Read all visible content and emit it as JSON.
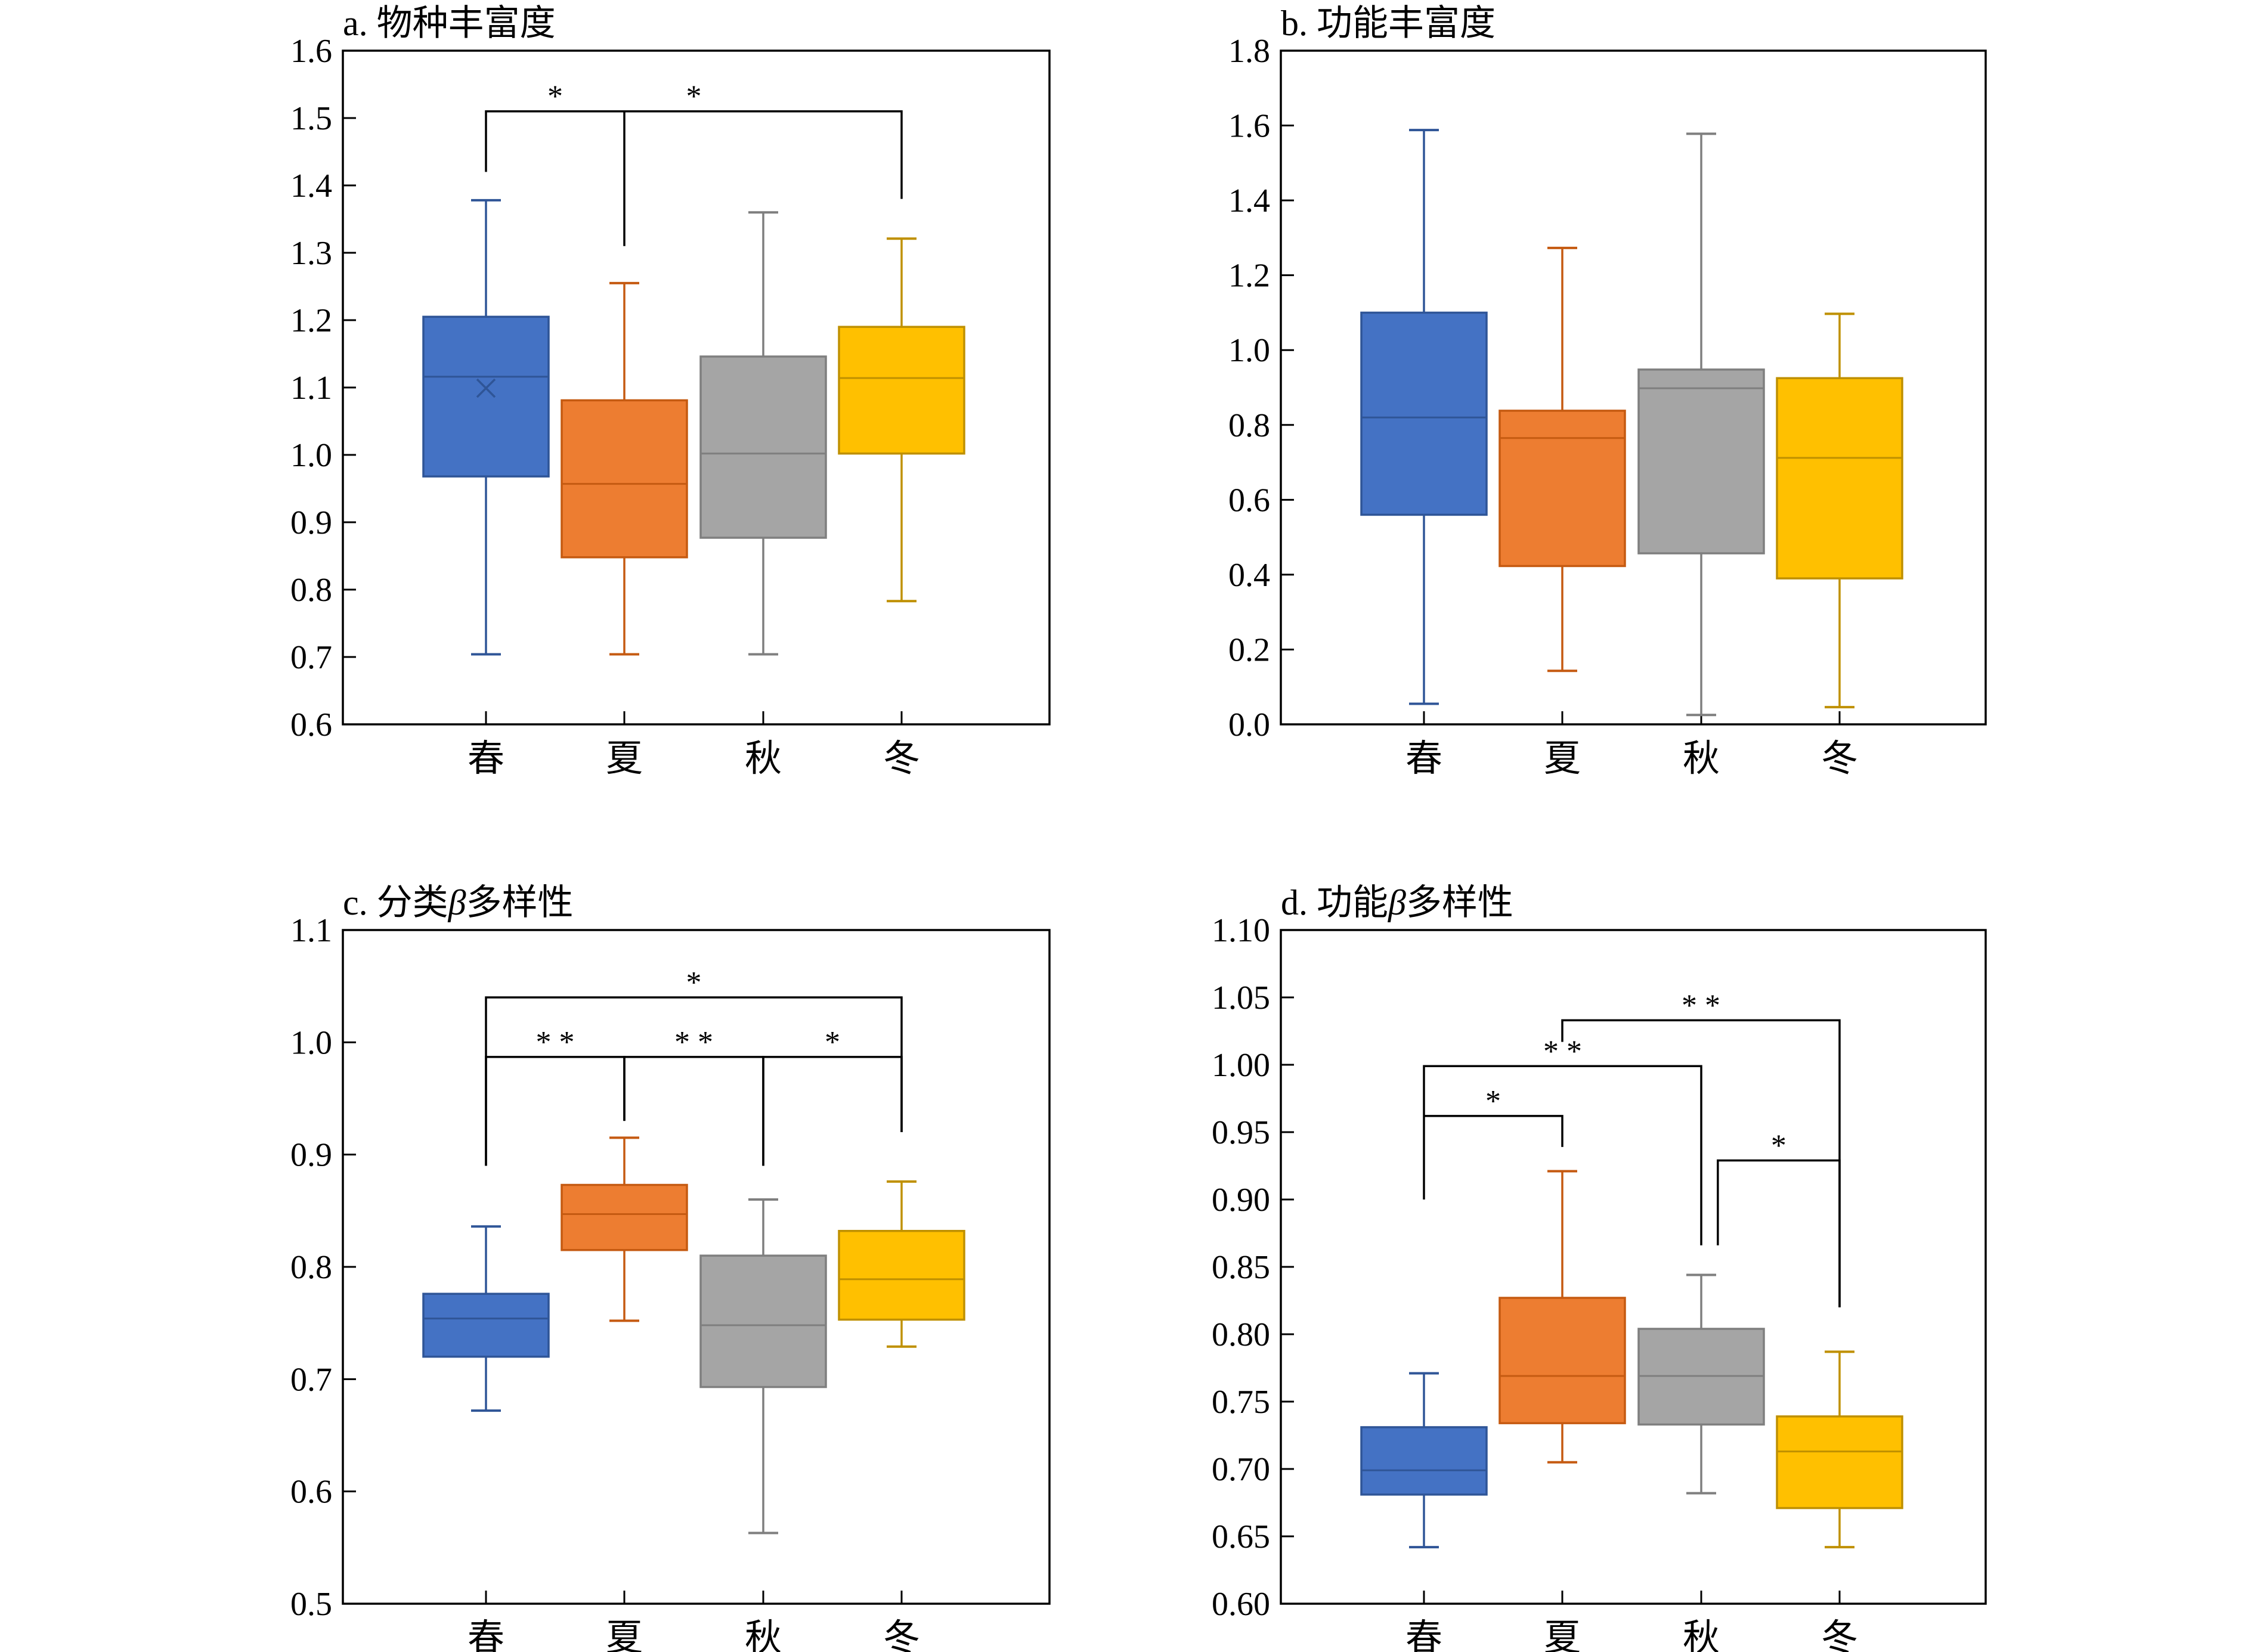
{
  "chart_data": [
    {
      "type": "box",
      "title": "a. 物种丰富度",
      "categories": [
        "春",
        "夏",
        "秋",
        "冬"
      ],
      "ylim": [
        0.6,
        1.6
      ],
      "yticks": [
        "0.6",
        "0.7",
        "0.8",
        "0.9",
        "1.0",
        "1.1",
        "1.2",
        "1.3",
        "1.4",
        "1.5",
        "1.6"
      ],
      "series": [
        {
          "min": 0.704,
          "q1": 0.968,
          "median": 1.116,
          "q3": 1.205,
          "max": 1.378,
          "mean": 1.099
        },
        {
          "min": 0.704,
          "q1": 0.848,
          "median": 0.957,
          "q3": 1.081,
          "max": 1.255
        },
        {
          "min": 0.704,
          "q1": 0.877,
          "median": 1.002,
          "q3": 1.146,
          "max": 1.36
        },
        {
          "min": 0.783,
          "q1": 1.002,
          "median": 1.114,
          "q3": 1.19,
          "max": 1.321
        }
      ],
      "significance": [
        {
          "from": 0,
          "to": 1,
          "label": "*",
          "y": 1.51,
          "yFrom": 1.42,
          "yTo": 1.31
        },
        {
          "from": 1,
          "to": 3,
          "label": "*",
          "y": 1.51,
          "yFrom": 1.51,
          "yTo": 1.38,
          "labelAt": 2
        }
      ]
    },
    {
      "type": "box",
      "title": "b. 功能丰富度",
      "categories": [
        "春",
        "夏",
        "秋",
        "冬"
      ],
      "ylim": [
        0.0,
        1.8
      ],
      "yticks": [
        "0.0",
        "0.2",
        "0.4",
        "0.6",
        "0.8",
        "1.0",
        "1.2",
        "1.4",
        "1.6",
        "1.8"
      ],
      "series": [
        {
          "min": 0.055,
          "q1": 0.56,
          "median": 0.82,
          "q3": 1.1,
          "max": 1.588
        },
        {
          "min": 0.143,
          "q1": 0.423,
          "median": 0.765,
          "q3": 0.838,
          "max": 1.273
        },
        {
          "min": 0.025,
          "q1": 0.457,
          "median": 0.898,
          "q3": 0.948,
          "max": 1.578
        },
        {
          "min": 0.046,
          "q1": 0.39,
          "median": 0.712,
          "q3": 0.925,
          "max": 1.097
        }
      ],
      "significance": []
    },
    {
      "type": "box",
      "title": "c. 分类β多样性",
      "title_prefix": "c. 分类",
      "title_symbol": "β",
      "title_suffix": "多样性",
      "categories": [
        "春",
        "夏",
        "秋",
        "冬"
      ],
      "ylim": [
        0.5,
        1.1
      ],
      "yticks": [
        "0.5",
        "0.6",
        "0.7",
        "0.8",
        "0.9",
        "1.0",
        "1.1"
      ],
      "series": [
        {
          "min": 0.672,
          "q1": 0.72,
          "median": 0.754,
          "q3": 0.776,
          "max": 0.836
        },
        {
          "min": 0.752,
          "q1": 0.815,
          "median": 0.847,
          "q3": 0.873,
          "max": 0.915
        },
        {
          "min": 0.563,
          "q1": 0.693,
          "median": 0.748,
          "q3": 0.81,
          "max": 0.86
        },
        {
          "min": 0.729,
          "q1": 0.753,
          "median": 0.789,
          "q3": 0.832,
          "max": 0.876
        }
      ],
      "significance": [
        {
          "from": 0,
          "to": 3,
          "label": "*",
          "y": 1.04,
          "yFrom": 0.89,
          "yTo": 0.92
        },
        {
          "from": 0,
          "to": 1,
          "label": "* *",
          "y": 0.987,
          "yFrom": 0.89,
          "yTo": 0.93
        },
        {
          "from": 1,
          "to": 2,
          "label": "* *",
          "y": 0.987,
          "yFrom": 0.93,
          "yTo": 0.89
        },
        {
          "from": 2,
          "to": 3,
          "label": "*",
          "y": 0.987,
          "yFrom": 0.89,
          "yTo": 0.92
        }
      ]
    },
    {
      "type": "box",
      "title": "d. 功能β多样性",
      "title_prefix": "d. 功能",
      "title_symbol": "β",
      "title_suffix": "多样性",
      "categories": [
        "春",
        "夏",
        "秋",
        "冬"
      ],
      "ylim": [
        0.6,
        1.1
      ],
      "yticks": [
        "0.60",
        "0.65",
        "0.70",
        "0.75",
        "0.80",
        "0.85",
        "0.90",
        "0.95",
        "1.00",
        "1.05",
        "1.10"
      ],
      "series": [
        {
          "min": 0.642,
          "q1": 0.681,
          "median": 0.699,
          "q3": 0.731,
          "max": 0.771
        },
        {
          "min": 0.705,
          "q1": 0.734,
          "median": 0.769,
          "q3": 0.827,
          "max": 0.921
        },
        {
          "min": 0.682,
          "q1": 0.733,
          "median": 0.769,
          "q3": 0.804,
          "max": 0.844
        },
        {
          "min": 0.642,
          "q1": 0.671,
          "median": 0.713,
          "q3": 0.739,
          "max": 0.787
        }
      ],
      "significance": [
        {
          "from": 1,
          "to": 3,
          "label": "* *",
          "y": 1.033,
          "yFrom": 1.017,
          "yTo": 0.82
        },
        {
          "from": 0,
          "to": 2,
          "label": "* *",
          "y": 0.999,
          "yFrom": 0.9,
          "yTo": 0.866
        },
        {
          "from": 0,
          "to": 1,
          "label": "*",
          "y": 0.962,
          "yFrom": 0.962,
          "yTo": 0.939
        },
        {
          "from": 2,
          "to": 3,
          "label": "*",
          "y": 0.929,
          "yFrom": 0.866,
          "yTo": 0.82,
          "fromOffset": 0.12
        }
      ]
    }
  ],
  "colors": {
    "box_fills": [
      "#4472C4",
      "#ED7D31",
      "#A5A5A5",
      "#FFC000"
    ],
    "box_edges": [
      "#2F5597",
      "#C55A11",
      "#7F7F7F",
      "#BF9000"
    ]
  }
}
